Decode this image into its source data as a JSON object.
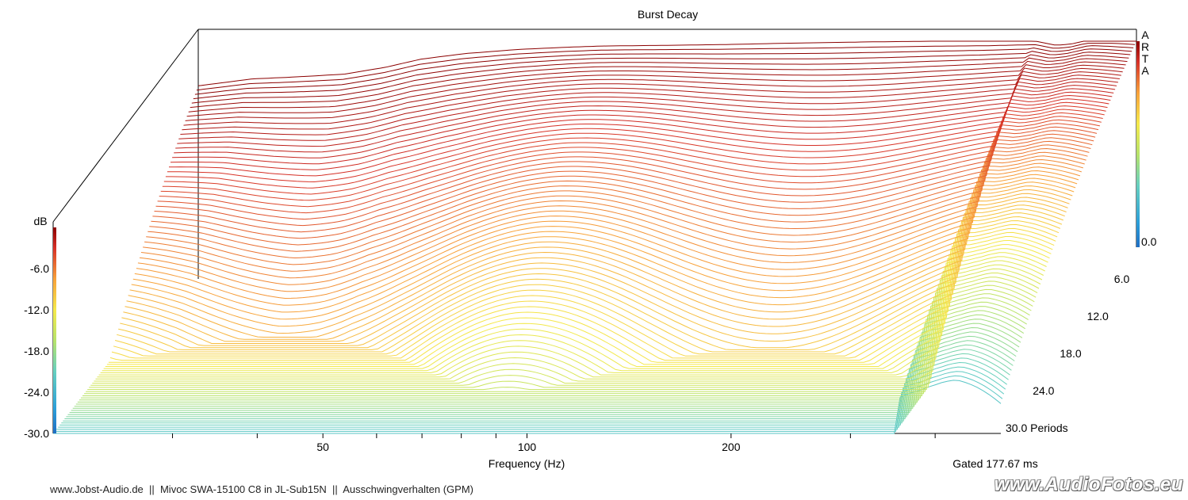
{
  "chart_data": {
    "type": "waterfall",
    "title": "Burst Decay",
    "xlabel": "Frequency (Hz)",
    "x_scale": "log",
    "xlim": [
      20,
      500
    ],
    "x_tick_labels": [
      50,
      100,
      200
    ],
    "x_minor_ticks": [
      30,
      40,
      60,
      70,
      80,
      90,
      300,
      400
    ],
    "z_label": "dB",
    "zlim": [
      -30,
      0
    ],
    "z_tick_labels": [
      "-6.0",
      "-12.0",
      "-18.0",
      "-24.0",
      "-30.0"
    ],
    "depth_label": "Periods",
    "depth_tick_labels": [
      "0.0",
      "6.0",
      "12.0",
      "18.0",
      "24.0",
      "30.0 Periods"
    ],
    "periods_range": [
      0,
      30
    ],
    "n_slices": 90,
    "gated_label": "Gated 177.67 ms",
    "colorbar": [
      "#8b0000",
      "#d73027",
      "#fc8d59",
      "#fee08b",
      "#d9ef8b",
      "#91cf60",
      "#66c2a5",
      "#2b9fd9",
      "#1f6fc5"
    ],
    "frequency_response_front_slice": {
      "x": [
        20,
        24,
        28,
        33,
        38,
        43,
        50,
        60,
        70,
        80,
        100,
        120,
        150,
        200,
        250,
        300,
        350,
        380,
        400,
        430,
        460,
        500
      ],
      "y": [
        -6.5,
        -5.5,
        -5.2,
        -4.8,
        -3.8,
        -2.6,
        -1.8,
        -1.2,
        -0.9,
        -0.7,
        -0.6,
        -0.5,
        -0.3,
        -0.1,
        0.0,
        0.0,
        0.1,
        -0.6,
        -0.4,
        0.3,
        0.2,
        0.0
      ]
    }
  },
  "arta_label": [
    "A",
    "R",
    "T",
    "A"
  ],
  "footer": "www.Jobst-Audio.de  ||  Mivoc SWA-15100 C8 in JL-Sub15N  ||  Ausschwingverhalten (GPM)",
  "watermark": "www.AudioFotos.eu"
}
